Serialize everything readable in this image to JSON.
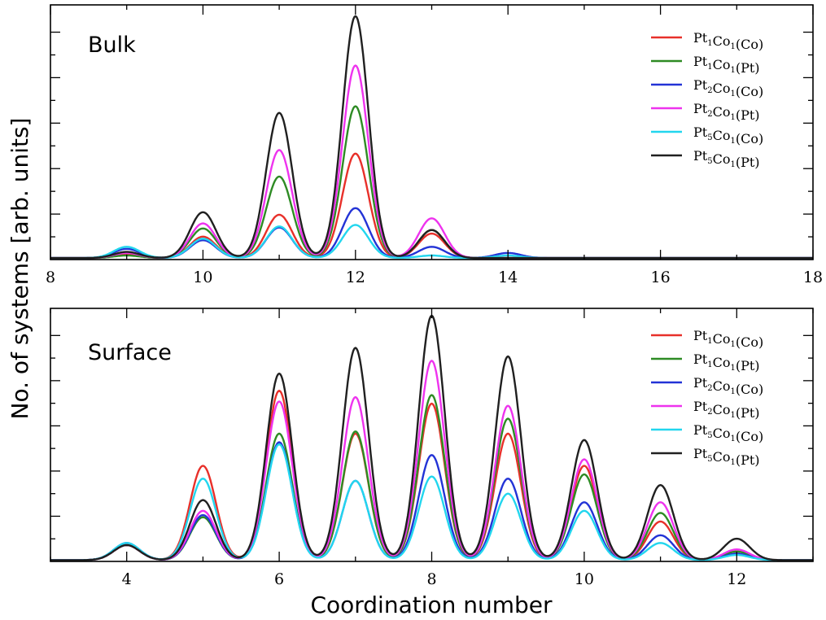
{
  "ylabel": "No. of systems [arb. units]",
  "xlabel": "Coordination number",
  "legend_entries": [
    {
      "a": "Pt",
      "i": "1",
      "b": "Co",
      "j": "1",
      "site": "(Co)",
      "color": "#e8302a"
    },
    {
      "a": "Pt",
      "i": "1",
      "b": "Co",
      "j": "1",
      "site": "(Pt)",
      "color": "#2e8b24"
    },
    {
      "a": "Pt",
      "i": "2",
      "b": "Co",
      "j": "1",
      "site": "(Co)",
      "color": "#2333d6"
    },
    {
      "a": "Pt",
      "i": "2",
      "b": "Co",
      "j": "1",
      "site": "(Pt)",
      "color": "#ee33ee"
    },
    {
      "a": "Pt",
      "i": "5",
      "b": "Co",
      "j": "1",
      "site": "(Co)",
      "color": "#22d6ee"
    },
    {
      "a": "Pt",
      "i": "5",
      "b": "Co",
      "j": "1",
      "site": "(Pt)",
      "color": "#202020"
    }
  ],
  "chart_data": [
    {
      "type": "line",
      "panel_label": "Bulk",
      "xlim": [
        8,
        18
      ],
      "ylim": [
        0,
        5.0
      ],
      "xticks": [
        8,
        10,
        12,
        14,
        16,
        18
      ],
      "yticks_count": 5,
      "peak_width": 0.17,
      "peaks_x": [
        9,
        10,
        11,
        12,
        13,
        14
      ],
      "series_ref": [
        "Pt1Co1(Co)",
        "Pt1Co1(Pt)",
        "Pt2Co1(Co)",
        "Pt2Co1(Pt)",
        "Pt5Co1(Co)",
        "Pt5Co1(Pt)"
      ],
      "peak_heights": [
        [
          0.08,
          0.42,
          0.85,
          2.05,
          0.48,
          0.0
        ],
        [
          0.05,
          0.58,
          1.6,
          2.98,
          0.55,
          0.0
        ],
        [
          0.18,
          0.35,
          0.6,
          0.98,
          0.22,
          0.1
        ],
        [
          0.1,
          0.68,
          2.12,
          3.78,
          0.78,
          0.0
        ],
        [
          0.22,
          0.38,
          0.62,
          0.65,
          0.05,
          0.05
        ],
        [
          0.12,
          0.9,
          2.85,
          4.75,
          0.55,
          0.0
        ]
      ]
    },
    {
      "type": "line",
      "panel_label": "Surface",
      "xlim": [
        3,
        13
      ],
      "ylim": [
        0,
        5.9
      ],
      "xticks": [
        4,
        6,
        8,
        10,
        12
      ],
      "yticks_count": 5,
      "peak_width": 0.17,
      "peaks_x": [
        4,
        5,
        6,
        7,
        8,
        9,
        10,
        11,
        12
      ],
      "series_ref": [
        "Pt1Co1(Co)",
        "Pt1Co1(Pt)",
        "Pt2Co1(Co)",
        "Pt2Co1(Pt)",
        "Pt5Co1(Co)",
        "Pt5Co1(Pt)"
      ],
      "peak_heights": [
        [
          0.35,
          2.2,
          3.95,
          2.95,
          3.65,
          2.95,
          2.2,
          0.9,
          0.2
        ],
        [
          0.35,
          1.0,
          2.95,
          3.0,
          3.85,
          3.3,
          2.0,
          1.1,
          0.2
        ],
        [
          0.4,
          1.05,
          2.75,
          1.85,
          2.45,
          1.9,
          1.35,
          0.58,
          0.15
        ],
        [
          0.35,
          1.15,
          3.7,
          3.8,
          4.65,
          3.6,
          2.35,
          1.35,
          0.25
        ],
        [
          0.4,
          1.9,
          2.7,
          1.85,
          1.95,
          1.55,
          1.15,
          0.4,
          0.12
        ],
        [
          0.35,
          1.4,
          4.35,
          4.95,
          5.7,
          4.75,
          2.8,
          1.75,
          0.5
        ]
      ]
    }
  ]
}
